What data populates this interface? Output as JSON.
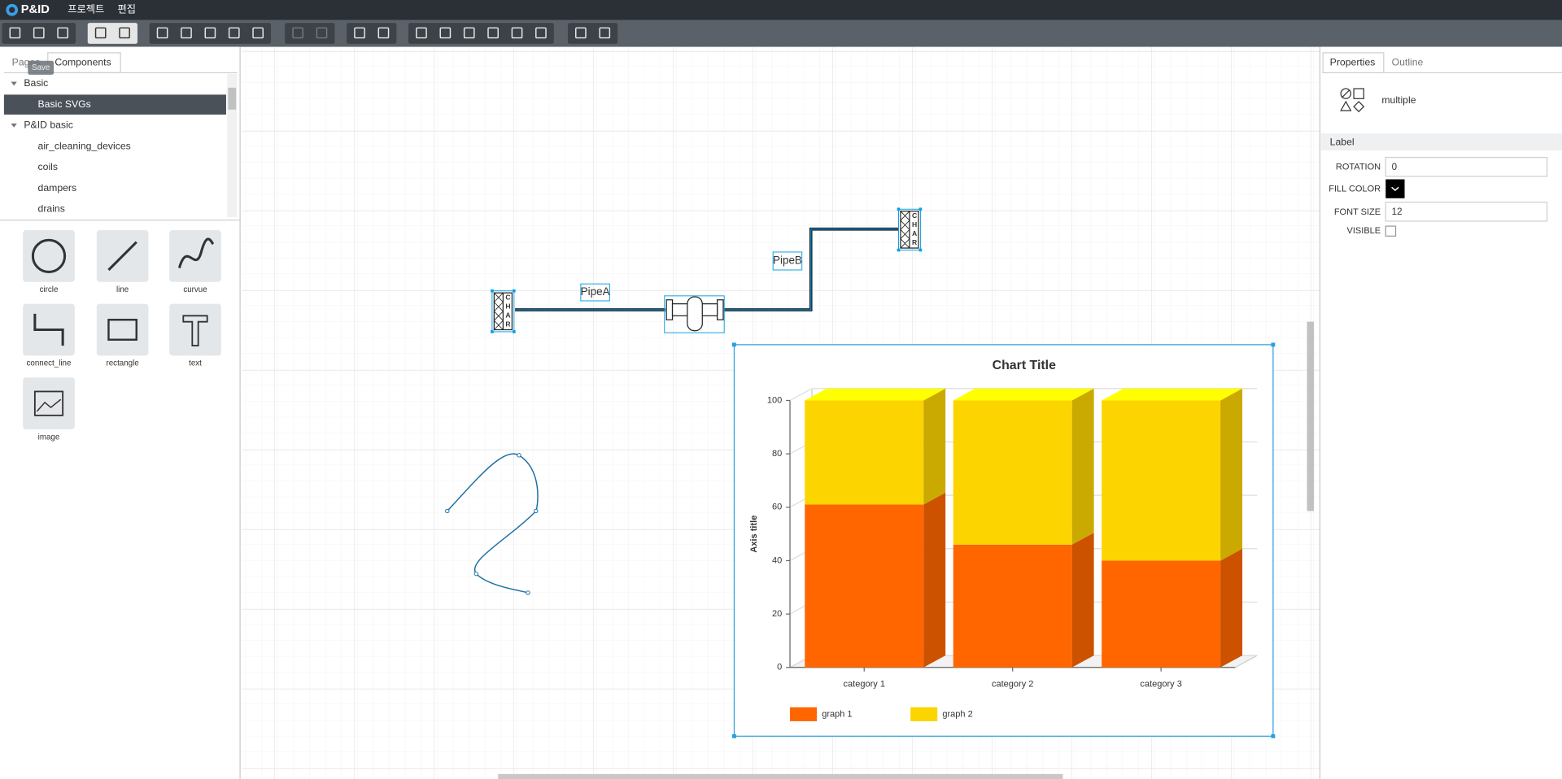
{
  "menu": {
    "logo": "P&ID",
    "items": [
      "프로젝트",
      "편집"
    ]
  },
  "tooltip": "Save",
  "left_panel": {
    "tabs": [
      "Pages",
      "Components"
    ],
    "tree": [
      {
        "label": "Basic",
        "children": [
          "Basic SVGs"
        ]
      },
      {
        "label": "P&ID basic",
        "children": [
          "air_cleaning_devices",
          "coils",
          "dampers",
          "drains"
        ]
      }
    ],
    "palette": [
      "circle",
      "line",
      "curvue",
      "connect_line",
      "rectangle",
      "text",
      "image"
    ]
  },
  "canvas": {
    "pipe_labels": [
      "PipeA",
      "PipeB"
    ],
    "symbol_text": [
      "C",
      "H",
      "A",
      "R"
    ]
  },
  "chart_data": {
    "type": "bar",
    "stacked": true,
    "three_d": true,
    "title": "Chart Title",
    "y_label": "Axis title",
    "categories": [
      "category 1",
      "category 2",
      "category 3"
    ],
    "series": [
      {
        "name": "graph 1",
        "color": "#ff6600",
        "values": [
          61,
          46,
          40
        ]
      },
      {
        "name": "graph 2",
        "color": "#fcd400",
        "values": [
          39,
          54,
          60
        ]
      }
    ],
    "ylim": [
      0,
      100
    ],
    "yticks": [
      0,
      20,
      40,
      60,
      80,
      100
    ],
    "grid": true,
    "legend": "bottom-left"
  },
  "right_panel": {
    "tabs": [
      "Properties",
      "Outline"
    ],
    "selection": "multiple",
    "section": "Label",
    "fields": [
      {
        "label": "ROTATION",
        "value": "0"
      },
      {
        "label": "FILL COLOR",
        "value": "#000000"
      },
      {
        "label": "FONT SIZE",
        "value": "12"
      },
      {
        "label": "VISIBLE"
      }
    ]
  }
}
